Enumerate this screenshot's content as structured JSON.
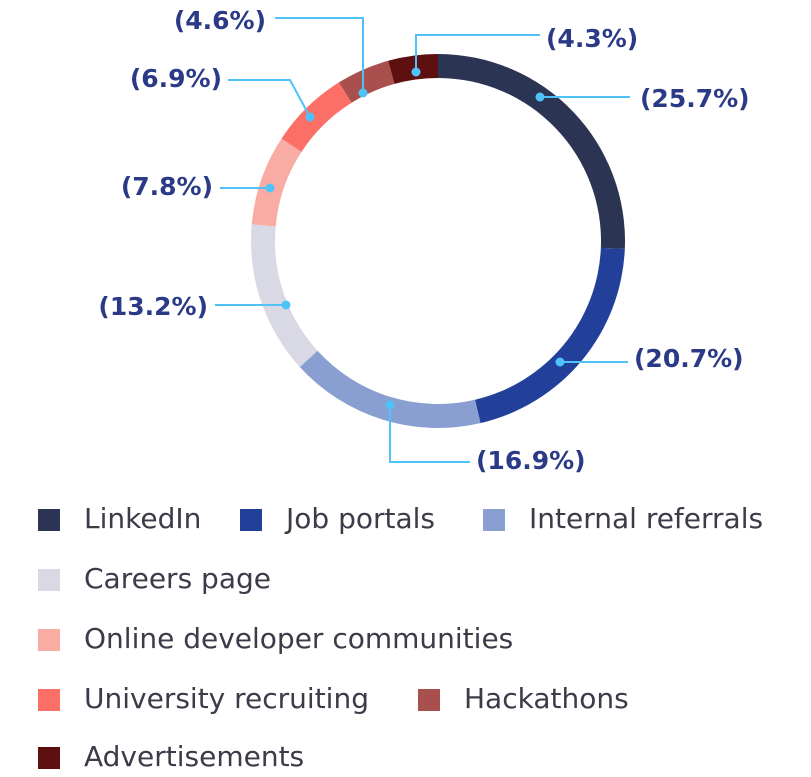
{
  "chart_data": {
    "type": "donut",
    "categories": [
      "LinkedIn",
      "Job portals",
      "Internal referrals",
      "Careers page",
      "Online developer communities",
      "University recruiting",
      "Hackathons",
      "Advertisements"
    ],
    "values": [
      25.7,
      20.7,
      16.9,
      13.2,
      7.8,
      6.9,
      4.6,
      4.3
    ],
    "value_labels": [
      "(25.7%)",
      "(20.7%)",
      "(16.9%)",
      "(13.2%)",
      "(7.8%)",
      "(6.9%)",
      "(4.6%)",
      "(4.3%)"
    ],
    "colors": [
      "#2b3452",
      "#22409a",
      "#8a9fd1",
      "#d9d9e6",
      "#f8aca3",
      "#fb6f66",
      "#a94f4d",
      "#5e0f0f"
    ],
    "legend": true
  }
}
